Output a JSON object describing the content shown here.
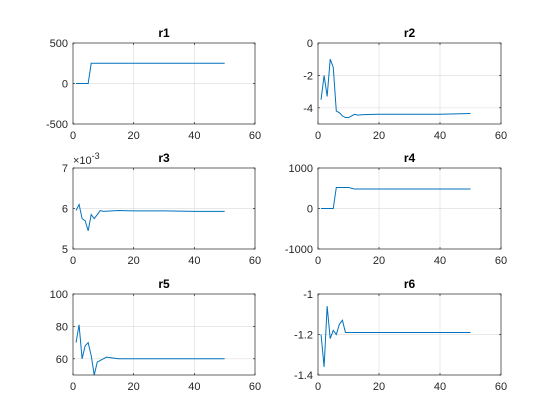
{
  "colors": {
    "line": "#0072bd",
    "axes": "#262626",
    "grid": "#e0e0e0"
  },
  "chart_data": [
    {
      "type": "line",
      "title": "r1",
      "xlim": [
        0,
        60
      ],
      "ylim": [
        -500,
        500
      ],
      "xticks": [
        0,
        20,
        40,
        60
      ],
      "yticks": [
        -500,
        0,
        500
      ],
      "xticklabels": [
        "0",
        "20",
        "40",
        "60"
      ],
      "yticklabels": [
        "-500",
        "0",
        "500"
      ],
      "grid": true,
      "series": [
        {
          "x": [
            1,
            2,
            3,
            4,
            5,
            6,
            7,
            10,
            20,
            30,
            40,
            50
          ],
          "y": [
            0,
            0,
            0,
            0,
            0,
            250,
            250,
            250,
            250,
            250,
            250,
            250
          ]
        }
      ]
    },
    {
      "type": "line",
      "title": "r2",
      "xlim": [
        0,
        60
      ],
      "ylim": [
        -5,
        0
      ],
      "xticks": [
        0,
        20,
        40,
        60
      ],
      "yticks": [
        -4,
        -2,
        0
      ],
      "xticklabels": [
        "0",
        "20",
        "40",
        "60"
      ],
      "yticklabels": [
        "-4",
        "-2",
        "0"
      ],
      "grid": true,
      "series": [
        {
          "x": [
            1,
            2,
            3,
            4,
            5,
            6,
            7,
            8,
            9,
            10,
            11,
            12,
            13,
            15,
            20,
            30,
            40,
            50
          ],
          "y": [
            -3.5,
            -2.0,
            -3.3,
            -1.0,
            -1.5,
            -4.2,
            -4.3,
            -4.5,
            -4.6,
            -4.6,
            -4.5,
            -4.4,
            -4.45,
            -4.42,
            -4.4,
            -4.4,
            -4.4,
            -4.35
          ]
        }
      ]
    },
    {
      "type": "line",
      "title": "r3",
      "exponent_label": "×10",
      "exponent": "-3",
      "xlim": [
        0,
        60
      ],
      "ylim": [
        5,
        7
      ],
      "xticks": [
        0,
        20,
        40,
        60
      ],
      "yticks": [
        5,
        6,
        7
      ],
      "xticklabels": [
        "0",
        "20",
        "40",
        "60"
      ],
      "yticklabels": [
        "5",
        "6",
        "7"
      ],
      "grid": true,
      "series": [
        {
          "x": [
            1,
            2,
            3,
            4,
            5,
            6,
            7,
            8,
            9,
            10,
            15,
            20,
            30,
            40,
            50
          ],
          "y": [
            5.95,
            6.1,
            5.75,
            5.7,
            5.45,
            5.85,
            5.75,
            5.85,
            5.95,
            5.93,
            5.95,
            5.94,
            5.94,
            5.93,
            5.93
          ]
        }
      ]
    },
    {
      "type": "line",
      "title": "r4",
      "xlim": [
        0,
        60
      ],
      "ylim": [
        -1000,
        1000
      ],
      "xticks": [
        0,
        20,
        40,
        60
      ],
      "yticks": [
        -1000,
        0,
        1000
      ],
      "xticklabels": [
        "0",
        "20",
        "40",
        "60"
      ],
      "yticklabels": [
        "-1000",
        "0",
        "1000"
      ],
      "grid": true,
      "series": [
        {
          "x": [
            1,
            2,
            3,
            4,
            5,
            6,
            7,
            8,
            9,
            10,
            11,
            12,
            20,
            30,
            40,
            50
          ],
          "y": [
            0,
            0,
            0,
            0,
            0,
            520,
            520,
            520,
            520,
            520,
            500,
            480,
            480,
            480,
            480,
            480
          ]
        }
      ]
    },
    {
      "type": "line",
      "title": "r5",
      "xlim": [
        0,
        60
      ],
      "ylim": [
        50,
        100
      ],
      "xticks": [
        0,
        20,
        40,
        60
      ],
      "yticks": [
        60,
        80,
        100
      ],
      "xticklabels": [
        "0",
        "20",
        "40",
        "60"
      ],
      "yticklabels": [
        "60",
        "80",
        "100"
      ],
      "grid": true,
      "series": [
        {
          "x": [
            1,
            2,
            3,
            4,
            5,
            6,
            7,
            8,
            9,
            10,
            11,
            15,
            20,
            30,
            40,
            50
          ],
          "y": [
            70,
            81,
            60,
            68,
            70,
            62,
            50,
            58,
            59,
            60,
            61,
            60,
            60,
            60,
            60,
            60
          ]
        }
      ]
    },
    {
      "type": "line",
      "title": "r6",
      "xlim": [
        0,
        60
      ],
      "ylim": [
        -1.4,
        -1.0
      ],
      "xticks": [
        0,
        20,
        40,
        60
      ],
      "yticks": [
        -1.4,
        -1.2,
        -1.0
      ],
      "xticklabels": [
        "0",
        "20",
        "40",
        "60"
      ],
      "yticklabels": [
        "-1.4",
        "-1.2",
        "-1"
      ],
      "grid": true,
      "series": [
        {
          "x": [
            1,
            2,
            3,
            4,
            5,
            6,
            7,
            8,
            9,
            10,
            11,
            15,
            20,
            30,
            40,
            50
          ],
          "y": [
            -1.2,
            -1.36,
            -1.06,
            -1.22,
            -1.18,
            -1.2,
            -1.15,
            -1.13,
            -1.19,
            -1.19,
            -1.19,
            -1.19,
            -1.19,
            -1.19,
            -1.19,
            -1.19
          ]
        }
      ]
    }
  ]
}
